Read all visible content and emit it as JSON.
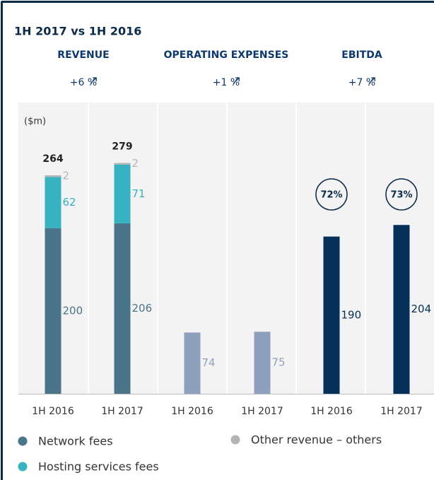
{
  "chart_data": {
    "type": "bar",
    "title": "1H 2017 vs 1H 2016",
    "unit_label": "($m)",
    "ylim": [
      0,
      352
    ],
    "groups": [
      {
        "title": "REVENUE",
        "change": "+6 %",
        "categories": [
          "1H 2016",
          "1H 2017"
        ],
        "totals": [
          264,
          279
        ],
        "series": [
          {
            "name": "Network fees",
            "color": "#4a7488",
            "values": [
              200,
              206
            ]
          },
          {
            "name": "Hosting services fees",
            "color": "#36b2c0",
            "values": [
              62,
              71
            ]
          },
          {
            "name": "Other revenue – others",
            "color": "#b4b4b4",
            "values": [
              2,
              2
            ]
          }
        ]
      },
      {
        "title": "OPERATING EXPENSES",
        "change": "+1 %",
        "categories": [
          "1H 2016",
          "1H 2017"
        ],
        "series": [
          {
            "color": "#8fa0bf",
            "values": [
              74,
              75
            ]
          }
        ]
      },
      {
        "title": "EBITDA",
        "change": "+7 %",
        "categories": [
          "1H 2016",
          "1H 2017"
        ],
        "margins": [
          72,
          73
        ],
        "margin_labels": [
          "72%",
          "73%"
        ],
        "series": [
          {
            "color": "#05305a",
            "values": [
              190,
              204
            ]
          }
        ]
      }
    ]
  }
}
